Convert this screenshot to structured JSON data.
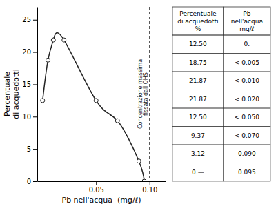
{
  "chart_data": {
    "type": "line",
    "x": [
      0.0,
      0.005,
      0.01,
      0.02,
      0.05,
      0.07,
      0.09,
      0.095
    ],
    "values": [
      12.5,
      18.75,
      21.87,
      21.87,
      12.5,
      9.37,
      3.12,
      0.0
    ],
    "color": "#222222",
    "marker": "circle",
    "xlabel": "Pb nell'acqua  (mg/ℓ)",
    "ylabel": "Percentuale\ndi acquedotti",
    "xlim": [
      -0.005,
      0.115
    ],
    "ylim": [
      0,
      27
    ],
    "xticks": [
      0.05,
      {
        "value": 0.1,
        "label": "0.10"
      }
    ],
    "yticks": [
      0,
      5,
      10,
      15,
      20,
      25
    ],
    "annotations": [
      {
        "x": 0.1,
        "text": "Concentrazione massima\nfissata dall'OHS",
        "line_style": "dashed"
      }
    ],
    "table": {
      "headers": [
        "Percentuale\ndi acquedotti\n%",
        "Pb\nnell'acqua\nmg/ℓ"
      ],
      "columns": [
        [
          "12.50",
          "18.75",
          "21.87",
          "21.87",
          "12.50",
          "9.37",
          "3.12",
          "0.—"
        ],
        [
          "0.",
          "< 0.005",
          "< 0.010",
          "< 0.020",
          "< 0.050",
          "< 0.070",
          "0.090",
          "0.095"
        ]
      ]
    }
  }
}
